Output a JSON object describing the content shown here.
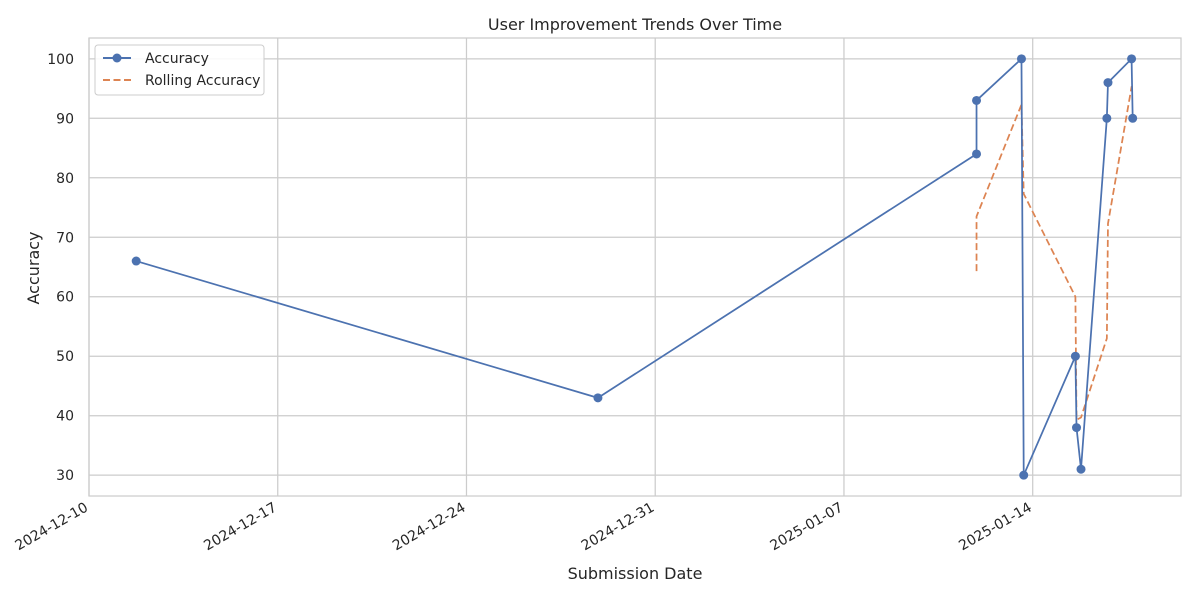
{
  "chart_data": {
    "type": "line",
    "title": "User Improvement Trends Over Time",
    "xlabel": "Submission Date",
    "ylabel": "Accuracy",
    "x_type": "datetime",
    "xlim": [
      "2024-12-10T00:00",
      "2025-01-19T12:00"
    ],
    "ylim": [
      26.5,
      103.5
    ],
    "x_ticks": [
      "2024-12-10",
      "2024-12-17",
      "2024-12-24",
      "2024-12-31",
      "2025-01-07",
      "2025-01-14"
    ],
    "y_ticks": [
      30,
      40,
      50,
      60,
      70,
      80,
      90,
      100
    ],
    "grid": true,
    "legend_position": "top-left",
    "series": [
      {
        "name": "Accuracy",
        "style": "solid",
        "marker": "circle",
        "color": "#4c72b0",
        "x": [
          "2024-12-11T18:00",
          "2024-12-28T21:00",
          "2025-01-11T22:00",
          "2025-01-11T22:00",
          "2025-01-13T14:00",
          "2025-01-13T16:00",
          "2025-01-15T14:00",
          "2025-01-15T15:00",
          "2025-01-15T19:00",
          "2025-01-16T18:00",
          "2025-01-16T19:00",
          "2025-01-17T16:00",
          "2025-01-17T17:00"
        ],
        "y": [
          66,
          43,
          84,
          93,
          100,
          30,
          50,
          38,
          31,
          90,
          96,
          100,
          90
        ]
      },
      {
        "name": "Rolling Accuracy",
        "style": "dashed",
        "marker": "none",
        "color": "#dd8452",
        "x": [
          "2025-01-11T22:00",
          "2025-01-11T22:00",
          "2025-01-13T14:00",
          "2025-01-13T16:00",
          "2025-01-15T14:00",
          "2025-01-15T15:00",
          "2025-01-15T19:00",
          "2025-01-16T18:00",
          "2025-01-16T19:00",
          "2025-01-17T16:00",
          "2025-01-17T17:00"
        ],
        "y": [
          64.3,
          73.5,
          92.3,
          77.3,
          60.0,
          39.3,
          39.7,
          53.0,
          72.3,
          95.3,
          95.3
        ]
      }
    ]
  }
}
